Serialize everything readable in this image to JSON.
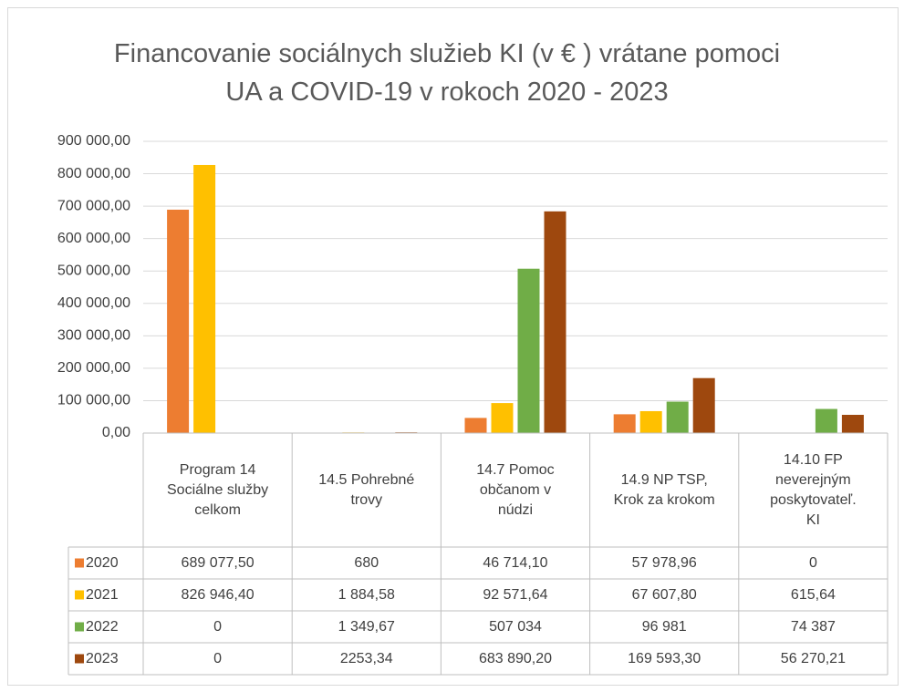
{
  "chart_data": {
    "type": "bar",
    "title": "Financovanie sociálnych služieb KI (v € ) vrátane pomoci UA a COVID-19 v rokoch 2020 - 2023",
    "categories": [
      "Program 14 Sociálne služby celkom",
      "14.5 Pohrebné trovy",
      "14.7 Pomoc občanom v núdzi",
      "14.9 NP TSP, Krok za krokom",
      "14.10 FP neverejným poskytovateľ. KI"
    ],
    "series": [
      {
        "name": "2020",
        "color": "#ED7D31",
        "values": [
          689077.5,
          680,
          46714.1,
          57978.96,
          0
        ],
        "value_labels": [
          "689 077,50",
          "680",
          "46 714,10",
          "57 978,96",
          "0"
        ]
      },
      {
        "name": "2021",
        "color": "#FFC000",
        "values": [
          826946.4,
          1884.58,
          92571.64,
          67607.8,
          615.64
        ],
        "value_labels": [
          "826 946,40",
          "1 884,58",
          "92 571,64",
          "67 607,80",
          "615,64"
        ]
      },
      {
        "name": "2022",
        "color": "#70AD47",
        "values": [
          0,
          1349.67,
          507034,
          96981,
          74387
        ],
        "value_labels": [
          "0",
          "1 349,67",
          "507 034",
          "96 981",
          "74 387"
        ]
      },
      {
        "name": "2023",
        "color": "#9E480E",
        "values": [
          0,
          2253.34,
          683890.2,
          169593.3,
          56270.21
        ],
        "value_labels": [
          "0",
          "2253,34",
          "683 890,20",
          "169 593,30",
          "56 270,21"
        ]
      }
    ],
    "ylim": [
      0,
      900000
    ],
    "yticks": [
      {
        "value": 0,
        "label": "0,00"
      },
      {
        "value": 100000,
        "label": "100 000,00"
      },
      {
        "value": 200000,
        "label": "200 000,00"
      },
      {
        "value": 300000,
        "label": "300 000,00"
      },
      {
        "value": 400000,
        "label": "400 000,00"
      },
      {
        "value": 500000,
        "label": "500 000,00"
      },
      {
        "value": 600000,
        "label": "600 000,00"
      },
      {
        "value": 700000,
        "label": "700 000,00"
      },
      {
        "value": 800000,
        "label": "800 000,00"
      },
      {
        "value": 900000,
        "label": "900 000,00"
      }
    ],
    "grid": true
  }
}
